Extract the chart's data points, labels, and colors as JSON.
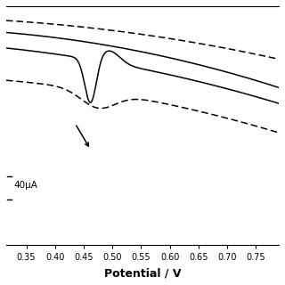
{
  "title": "",
  "xlabel": "Potential / V",
  "ylabel": "",
  "xlim": [
    0.315,
    0.79
  ],
  "ylim": [
    -1.0,
    1.0
  ],
  "xticks": [
    0.35,
    0.4,
    0.45,
    0.5,
    0.55,
    0.6,
    0.65,
    0.7,
    0.75
  ],
  "xtick_labels": [
    "0.35",
    "0.40",
    "0.45",
    "0.50",
    "0.55",
    "0.60",
    "0.65",
    "0.70",
    "0.75"
  ],
  "scale_label": "40μA",
  "background_color": "#ffffff",
  "line_color": "#000000"
}
